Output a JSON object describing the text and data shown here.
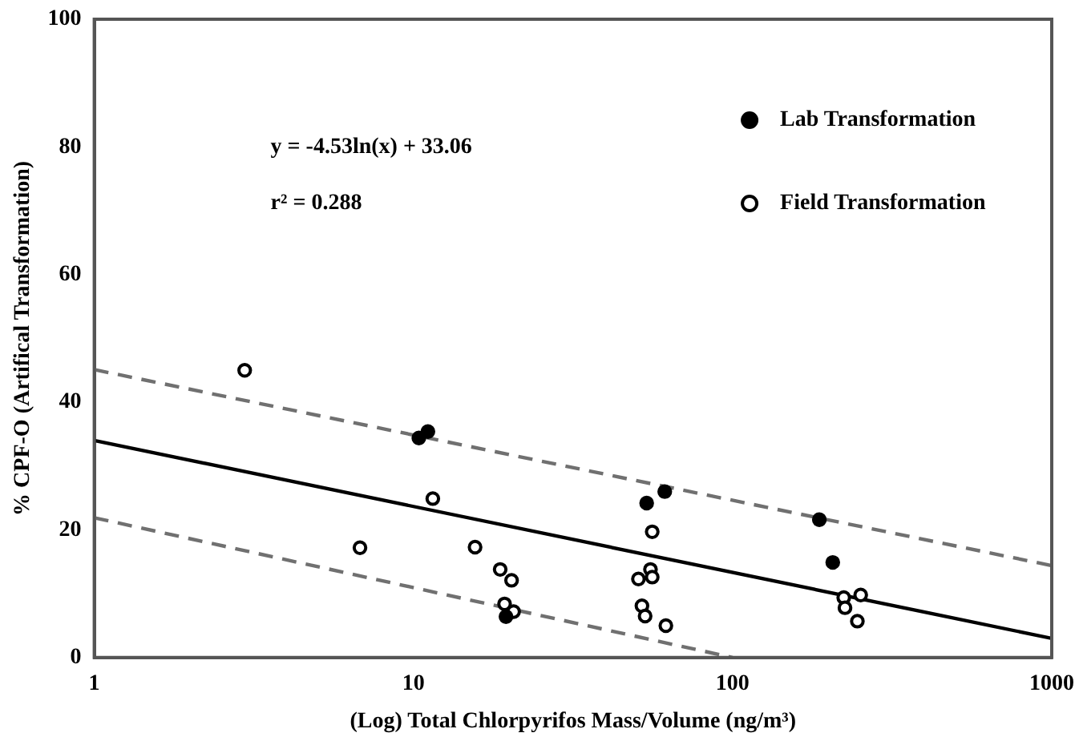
{
  "chart_data": {
    "type": "scatter",
    "xlabel": "(Log) Total Chlorpyrifos Mass/Volume (ng/m³)",
    "ylabel": "% CPF-O (Artifical Transformation)",
    "log": "x",
    "xlim": [
      1,
      1000
    ],
    "xticks": [
      1,
      10,
      100,
      1000
    ],
    "ylim": [
      0,
      100
    ],
    "yticks": [
      0,
      20,
      40,
      60,
      80,
      100
    ],
    "grid": false,
    "legend": "top right",
    "annotations": [
      "y = -4.53ln(x) + 33.06",
      "r² = 0.288"
    ],
    "series": [
      {
        "name": "Lab Transformation",
        "color": "#000000",
        "marker": "circle",
        "x": [
          10.4,
          11.1,
          19.5,
          53.8,
          61.3,
          187,
          206
        ],
        "values": [
          34.4,
          35.4,
          6.4,
          24.2,
          26.0,
          21.6,
          14.9
        ]
      },
      {
        "name": "Field Transformation",
        "color": "#000000",
        "marker": "circle-open",
        "x": [
          2.96,
          11.5,
          6.8,
          15.6,
          18.7,
          20.3,
          19.3,
          20.6,
          56.0,
          55.3,
          56.0,
          50.7,
          52.0,
          53.2,
          61.8,
          223,
          252,
          225,
          246
        ],
        "values": [
          45.0,
          24.9,
          17.2,
          17.3,
          13.8,
          12.1,
          8.4,
          7.2,
          19.7,
          13.8,
          12.6,
          12.3,
          8.1,
          6.5,
          5.0,
          9.4,
          9.8,
          7.8,
          5.7
        ]
      },
      {
        "type": "line",
        "color": "#000000",
        "line_style": "solid",
        "marker": "none",
        "x": [
          1,
          1000
        ],
        "values": [
          34.0,
          3.0
        ]
      },
      {
        "type": "line",
        "color": "#707070",
        "line_style": "dashed",
        "marker": "none",
        "x": [
          1,
          1000
        ],
        "values": [
          45.1,
          14.4
        ]
      },
      {
        "type": "line",
        "color": "#707070",
        "line_style": "dashed",
        "marker": "none",
        "x": [
          1,
          100
        ],
        "values": [
          21.9,
          0
        ]
      }
    ]
  }
}
